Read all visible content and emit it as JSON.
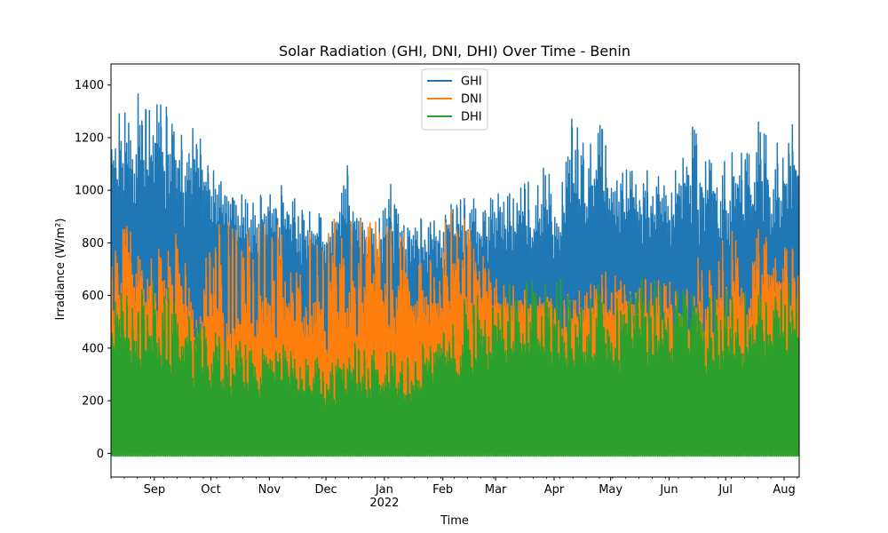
{
  "chart_data": {
    "type": "line",
    "title": "Solar Radiation (GHI, DNI, DHI) Over Time - Benin",
    "xlabel": "Time",
    "ylabel": "Irradiance (W/m²)",
    "xlim": [
      "2021-08-09",
      "2022-08-09"
    ],
    "ylim": [
      -90,
      1480
    ],
    "yticks": [
      0,
      200,
      400,
      600,
      800,
      1000,
      1200,
      1400
    ],
    "xticks": [
      {
        "date": "2021-09-01",
        "label": "Sep",
        "sublabel": ""
      },
      {
        "date": "2021-10-01",
        "label": "Oct",
        "sublabel": ""
      },
      {
        "date": "2021-11-01",
        "label": "Nov",
        "sublabel": ""
      },
      {
        "date": "2021-12-01",
        "label": "Dec",
        "sublabel": ""
      },
      {
        "date": "2022-01-01",
        "label": "Jan",
        "sublabel": "2022"
      },
      {
        "date": "2022-02-01",
        "label": "Feb",
        "sublabel": ""
      },
      {
        "date": "2022-03-01",
        "label": "Mar",
        "sublabel": ""
      },
      {
        "date": "2022-04-01",
        "label": "Apr",
        "sublabel": ""
      },
      {
        "date": "2022-05-01",
        "label": "May",
        "sublabel": ""
      },
      {
        "date": "2022-06-01",
        "label": "Jun",
        "sublabel": ""
      },
      {
        "date": "2022-07-01",
        "label": "Jul",
        "sublabel": ""
      },
      {
        "date": "2022-08-01",
        "label": "Aug",
        "sublabel": ""
      }
    ],
    "legend_position": "top-center",
    "grid": false,
    "series": [
      {
        "name": "GHI",
        "color": "#1f77b4",
        "samples": "daily peak value (W/m²), dates from xlim start, night minimum ~0",
        "x": [
          "2021-08-09",
          "2021-08-16",
          "2021-08-23",
          "2021-08-30",
          "2021-09-06",
          "2021-09-13",
          "2021-09-20",
          "2021-09-27",
          "2021-10-04",
          "2021-10-11",
          "2021-10-18",
          "2021-10-25",
          "2021-11-01",
          "2021-11-08",
          "2021-11-15",
          "2021-11-22",
          "2021-11-29",
          "2021-12-06",
          "2021-12-13",
          "2021-12-20",
          "2021-12-27",
          "2022-01-03",
          "2022-01-10",
          "2022-01-17",
          "2022-01-24",
          "2022-01-31",
          "2022-02-07",
          "2022-02-14",
          "2022-02-21",
          "2022-02-28",
          "2022-03-07",
          "2022-03-14",
          "2022-03-21",
          "2022-03-28",
          "2022-04-04",
          "2022-04-11",
          "2022-04-18",
          "2022-04-25",
          "2022-05-02",
          "2022-05-09",
          "2022-05-16",
          "2022-05-23",
          "2022-05-30",
          "2022-06-06",
          "2022-06-13",
          "2022-06-20",
          "2022-06-27",
          "2022-07-04",
          "2022-07-11",
          "2022-07-18",
          "2022-07-25",
          "2022-08-01",
          "2022-08-08"
        ],
        "peaks": [
          1360,
          1300,
          1410,
          1390,
          1330,
          1290,
          1250,
          1180,
          1050,
          990,
          1010,
          980,
          1000,
          1030,
          960,
          950,
          920,
          880,
          1150,
          890,
          860,
          1050,
          880,
          920,
          880,
          930,
          960,
          980,
          990,
          1000,
          1000,
          1050,
          1030,
          1120,
          1000,
          1340,
          1200,
          1290,
          1150,
          1100,
          1080,
          1160,
          1030,
          1120,
          1250,
          1150,
          1060,
          1190,
          1130,
          1280,
          1160,
          1290,
          1270
        ],
        "base": [
          700,
          760,
          760,
          740,
          720,
          700,
          740,
          760,
          780,
          760,
          740,
          720,
          700,
          700,
          680,
          660,
          650,
          640,
          650,
          640,
          650,
          640,
          650,
          650,
          640,
          640,
          650,
          650,
          640,
          640,
          660,
          620,
          600,
          620,
          640,
          700,
          720,
          700,
          700,
          720,
          700,
          700,
          700,
          680,
          680,
          700,
          660,
          680,
          680,
          700,
          700,
          700,
          720
        ]
      },
      {
        "name": "DNI",
        "color": "#ff7f0e",
        "samples": "daily peak value (W/m²)",
        "x": [
          "2021-08-09",
          "2021-08-16",
          "2021-08-23",
          "2021-08-30",
          "2021-09-06",
          "2021-09-13",
          "2021-09-20",
          "2021-09-27",
          "2021-10-04",
          "2021-10-11",
          "2021-10-18",
          "2021-10-25",
          "2021-11-01",
          "2021-11-08",
          "2021-11-15",
          "2021-11-22",
          "2021-11-29",
          "2021-12-06",
          "2021-12-13",
          "2021-12-20",
          "2021-12-27",
          "2022-01-03",
          "2022-01-10",
          "2022-01-17",
          "2022-01-24",
          "2022-01-31",
          "2022-02-07",
          "2022-02-14",
          "2022-02-21",
          "2022-02-28",
          "2022-03-07",
          "2022-03-14",
          "2022-03-21",
          "2022-03-28",
          "2022-04-04",
          "2022-04-11",
          "2022-04-18",
          "2022-04-25",
          "2022-05-02",
          "2022-05-09",
          "2022-05-16",
          "2022-05-23",
          "2022-05-30",
          "2022-06-06",
          "2022-06-13",
          "2022-06-20",
          "2022-06-27",
          "2022-07-04",
          "2022-07-11",
          "2022-07-18",
          "2022-07-25",
          "2022-08-01",
          "2022-08-08"
        ],
        "peaks": [
          820,
          900,
          870,
          820,
          880,
          860,
          800,
          780,
          870,
          880,
          860,
          870,
          880,
          900,
          920,
          940,
          920,
          900,
          880,
          900,
          880,
          870,
          880,
          880,
          870,
          900,
          950,
          880,
          860,
          700,
          650,
          640,
          600,
          600,
          560,
          650,
          700,
          700,
          680,
          720,
          700,
          640,
          700,
          740,
          760,
          720,
          800,
          880,
          860,
          860,
          840,
          820,
          780
        ],
        "lows": [
          380,
          420,
          420,
          400,
          380,
          380,
          300,
          240,
          220,
          180,
          180,
          200,
          220,
          200,
          160,
          150,
          170,
          200,
          260,
          250,
          280,
          230,
          200,
          220,
          180,
          200,
          220,
          300,
          360,
          450,
          480,
          500,
          520,
          540,
          360,
          380,
          420,
          440,
          420,
          440,
          420,
          420,
          420,
          280,
          320,
          340,
          300,
          240,
          320,
          420,
          440,
          420,
          450
        ]
      },
      {
        "name": "DHI",
        "color": "#2ca02c",
        "samples": "daily peak value (W/m²), night minimum slightly negative",
        "x": [
          "2021-08-09",
          "2021-08-16",
          "2021-08-23",
          "2021-08-30",
          "2021-09-06",
          "2021-09-13",
          "2021-09-20",
          "2021-09-27",
          "2021-10-04",
          "2021-10-11",
          "2021-10-18",
          "2021-10-25",
          "2021-11-01",
          "2021-11-08",
          "2021-11-15",
          "2021-11-22",
          "2021-11-29",
          "2021-12-06",
          "2021-12-13",
          "2021-12-20",
          "2021-12-27",
          "2022-01-03",
          "2022-01-10",
          "2022-01-17",
          "2022-01-24",
          "2022-01-31",
          "2022-02-07",
          "2022-02-14",
          "2022-02-21",
          "2022-02-28",
          "2022-03-07",
          "2022-03-14",
          "2022-03-21",
          "2022-03-28",
          "2022-04-04",
          "2022-04-11",
          "2022-04-18",
          "2022-04-25",
          "2022-05-02",
          "2022-05-09",
          "2022-05-16",
          "2022-05-23",
          "2022-05-30",
          "2022-06-06",
          "2022-06-13",
          "2022-06-20",
          "2022-06-27",
          "2022-07-04",
          "2022-07-11",
          "2022-07-18",
          "2022-07-25",
          "2022-08-01",
          "2022-08-08"
        ],
        "peaks": [
          600,
          640,
          620,
          660,
          600,
          560,
          520,
          500,
          460,
          440,
          420,
          430,
          410,
          420,
          380,
          360,
          360,
          370,
          420,
          400,
          410,
          380,
          390,
          400,
          440,
          460,
          520,
          560,
          640,
          680,
          650,
          680,
          690,
          690,
          640,
          620,
          640,
          660,
          620,
          640,
          640,
          660,
          690,
          660,
          620,
          600,
          620,
          660,
          640,
          610,
          640,
          640,
          660
        ]
      }
    ]
  }
}
